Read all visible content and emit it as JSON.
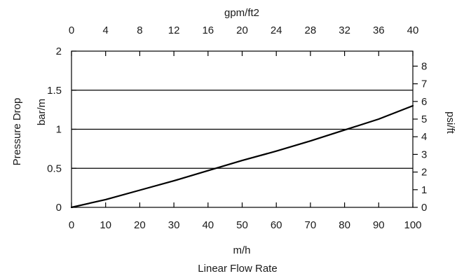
{
  "chart_data": {
    "type": "line",
    "title": "",
    "xlabel_bottom": "m/h",
    "xlabel_bottom_caption": "Linear Flow Rate",
    "xlabel_top": "gpm/ft2",
    "ylabel_left": "Pressure Drop",
    "ylabel_left_unit": "bar/m",
    "ylabel_right": "psi/ft",
    "xlim": [
      0,
      100
    ],
    "ylim": [
      0,
      2
    ],
    "xlim_top": [
      0,
      40
    ],
    "ylim_right": [
      0,
      8.85
    ],
    "x_ticks": [
      "0",
      "10",
      "20",
      "30",
      "40",
      "50",
      "60",
      "70",
      "80",
      "90",
      "100"
    ],
    "x_top_ticks": [
      "0",
      "4",
      "8",
      "12",
      "16",
      "20",
      "24",
      "28",
      "32",
      "36",
      "40"
    ],
    "y_ticks": [
      "0",
      "0.5",
      "1",
      "1.5",
      "2"
    ],
    "y_right_ticks": [
      "0",
      "1",
      "2",
      "3",
      "4",
      "5",
      "6",
      "7",
      "8"
    ],
    "grid": "horizontal",
    "line_color": "#000000",
    "series": [
      {
        "x": [
          0,
          10,
          20,
          30,
          40,
          50,
          60,
          70,
          80,
          90,
          100
        ],
        "values": [
          0,
          0.1,
          0.22,
          0.34,
          0.47,
          0.6,
          0.72,
          0.85,
          0.99,
          1.13,
          1.3
        ]
      }
    ]
  }
}
